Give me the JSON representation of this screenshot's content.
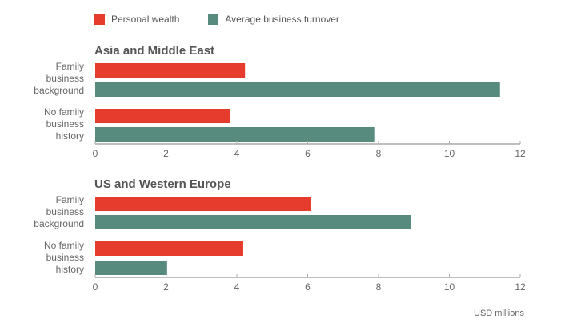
{
  "legend": [
    {
      "label": "Personal wealth",
      "color": "#e63c2d"
    },
    {
      "label": "Average business turnover",
      "color": "#568b7e"
    }
  ],
  "unit_label": "USD millions",
  "chart_data": [
    {
      "type": "bar",
      "orientation": "horizontal",
      "title": "Asia and Middle East",
      "categories": [
        "Family business background",
        "No family business history"
      ],
      "category_lines": [
        [
          "Family",
          "business",
          "background"
        ],
        [
          "No family",
          "business",
          "history"
        ]
      ],
      "series": [
        {
          "name": "Personal wealth",
          "values": [
            4.23,
            3.82
          ]
        },
        {
          "name": "Average business turnover",
          "values": [
            11.43,
            7.88
          ]
        }
      ],
      "xlim": [
        0,
        12
      ],
      "ticks": [
        "0",
        "2",
        "4",
        "6",
        "8",
        "10",
        "12"
      ],
      "xlabel": "USD millions"
    },
    {
      "type": "bar",
      "orientation": "horizontal",
      "title": "US and Western Europe",
      "categories": [
        "Family business background",
        "No family business history"
      ],
      "category_lines": [
        [
          "Family",
          "business",
          "background"
        ],
        [
          "No family",
          "business",
          "history"
        ]
      ],
      "series": [
        {
          "name": "Personal wealth",
          "values": [
            6.1,
            4.18
          ]
        },
        {
          "name": "Average business turnover",
          "values": [
            8.92,
            2.03
          ]
        }
      ],
      "xlim": [
        0,
        12
      ],
      "ticks": [
        "0",
        "2",
        "4",
        "6",
        "8",
        "10",
        "12"
      ],
      "xlabel": "USD millions"
    }
  ]
}
